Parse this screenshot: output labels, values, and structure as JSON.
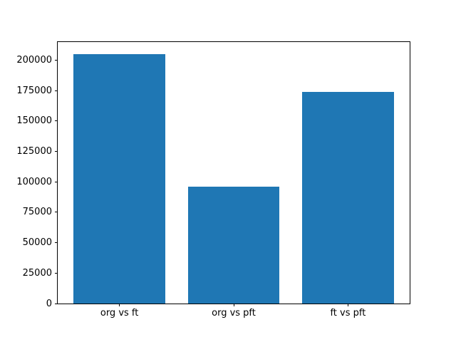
{
  "chart_data": {
    "type": "bar",
    "title": "",
    "xlabel": "",
    "ylabel": "",
    "categories": [
      "org vs ft",
      "org vs pft",
      "ft vs pft"
    ],
    "values": [
      204900,
      96000,
      174000
    ],
    "ylim": [
      0,
      215000
    ],
    "yticks": [
      0,
      25000,
      50000,
      75000,
      100000,
      125000,
      150000,
      175000,
      200000
    ],
    "bar_color": "#1f77b4",
    "axes_edge_color": "#000000",
    "background_color": "#ffffff",
    "grid": false,
    "legend_position": "none"
  }
}
